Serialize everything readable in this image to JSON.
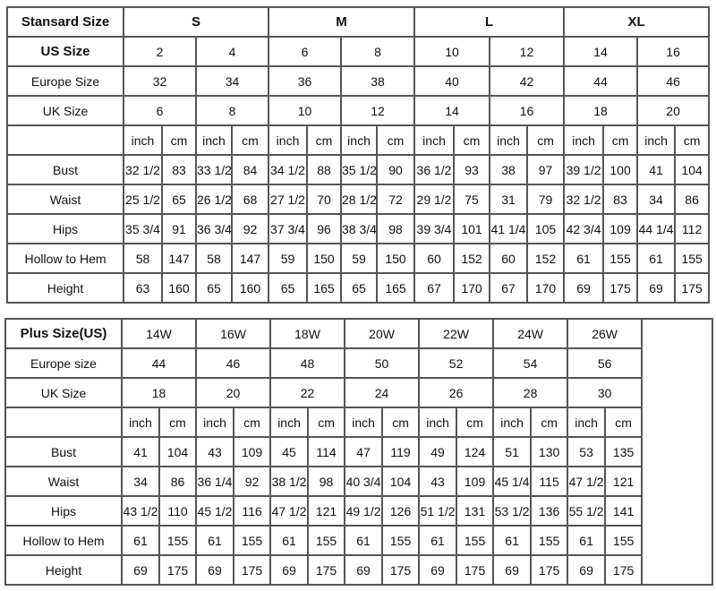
{
  "standard": {
    "title": "Stansard Size",
    "groups": [
      "S",
      "M",
      "L",
      "XL"
    ],
    "us_label": "US Size",
    "us": [
      "2",
      "4",
      "6",
      "8",
      "10",
      "12",
      "14",
      "16"
    ],
    "eu_label": "Europe Size",
    "eu": [
      "32",
      "34",
      "36",
      "38",
      "40",
      "42",
      "44",
      "46"
    ],
    "uk_label": "UK Size",
    "uk": [
      "6",
      "8",
      "10",
      "12",
      "14",
      "16",
      "18",
      "20"
    ],
    "unit_inch": "inch",
    "unit_cm": "cm",
    "rows": [
      {
        "label": "Bust",
        "values": [
          "32 1/2",
          "83",
          "33 1/2",
          "84",
          "34 1/2",
          "88",
          "35 1/2",
          "90",
          "36 1/2",
          "93",
          "38",
          "97",
          "39 1/2",
          "100",
          "41",
          "104"
        ]
      },
      {
        "label": "Waist",
        "values": [
          "25 1/2",
          "65",
          "26 1/2",
          "68",
          "27 1/2",
          "70",
          "28 1/2",
          "72",
          "29 1/2",
          "75",
          "31",
          "79",
          "32 1/2",
          "83",
          "34",
          "86"
        ]
      },
      {
        "label": "Hips",
        "values": [
          "35 3/4",
          "91",
          "36 3/4",
          "92",
          "37 3/4",
          "96",
          "38 3/4",
          "98",
          "39 3/4",
          "101",
          "41 1/4",
          "105",
          "42 3/4",
          "109",
          "44 1/4",
          "112"
        ]
      },
      {
        "label": "Hollow to Hem",
        "values": [
          "58",
          "147",
          "58",
          "147",
          "59",
          "150",
          "59",
          "150",
          "60",
          "152",
          "60",
          "152",
          "61",
          "155",
          "61",
          "155"
        ]
      },
      {
        "label": "Height",
        "values": [
          "63",
          "160",
          "65",
          "160",
          "65",
          "165",
          "65",
          "165",
          "67",
          "170",
          "67",
          "170",
          "69",
          "175",
          "69",
          "175"
        ]
      }
    ]
  },
  "plus": {
    "title": "Plus Size(US)",
    "sizes": [
      "14W",
      "16W",
      "18W",
      "20W",
      "22W",
      "24W",
      "26W"
    ],
    "eu_label": "Europe size",
    "eu": [
      "44",
      "46",
      "48",
      "50",
      "52",
      "54",
      "56"
    ],
    "uk_label": "UK Size",
    "uk": [
      "18",
      "20",
      "22",
      "24",
      "26",
      "28",
      "30"
    ],
    "unit_inch": "inch",
    "unit_cm": "cm",
    "rows": [
      {
        "label": "Bust",
        "values": [
          "41",
          "104",
          "43",
          "109",
          "45",
          "114",
          "47",
          "119",
          "49",
          "124",
          "51",
          "130",
          "53",
          "135"
        ]
      },
      {
        "label": "Waist",
        "values": [
          "34",
          "86",
          "36 1/4",
          "92",
          "38 1/2",
          "98",
          "40 3/4",
          "104",
          "43",
          "109",
          "45 1/4",
          "115",
          "47 1/2",
          "121"
        ]
      },
      {
        "label": "Hips",
        "values": [
          "43 1/2",
          "110",
          "45 1/2",
          "116",
          "47 1/2",
          "121",
          "49 1/2",
          "126",
          "51 1/2",
          "131",
          "53 1/2",
          "136",
          "55 1/2",
          "141"
        ]
      },
      {
        "label": "Hollow to Hem",
        "values": [
          "61",
          "155",
          "61",
          "155",
          "61",
          "155",
          "61",
          "155",
          "61",
          "155",
          "61",
          "155",
          "61",
          "155"
        ]
      },
      {
        "label": "Height",
        "values": [
          "69",
          "175",
          "69",
          "175",
          "69",
          "175",
          "69",
          "175",
          "69",
          "175",
          "69",
          "175",
          "69",
          "175"
        ]
      }
    ]
  }
}
